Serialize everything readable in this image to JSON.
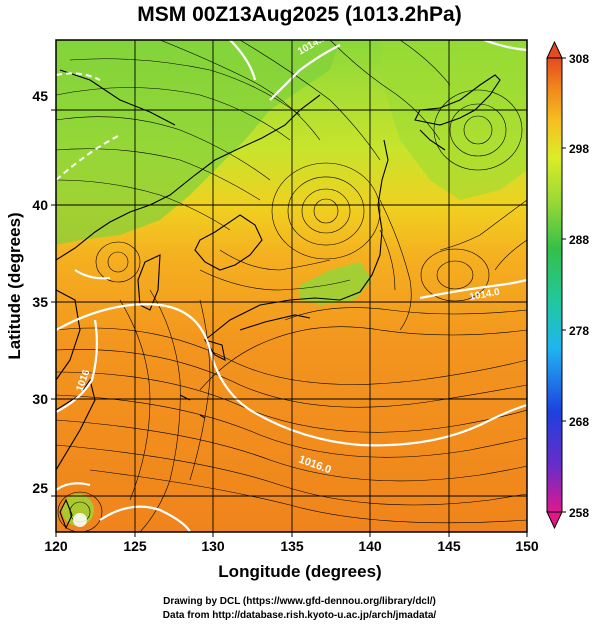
{
  "header": {
    "title": "MSM 00Z13Aug2025 (1013.2hPa)"
  },
  "axes": {
    "xlabel": "Longitude (degrees)",
    "ylabel": "Latitude  (degrees)",
    "x_ticks": [
      "120",
      "125",
      "130",
      "135",
      "140",
      "145",
      "150"
    ],
    "y_ticks": [
      "25",
      "30",
      "35",
      "40",
      "45"
    ],
    "x_range": [
      120,
      150
    ],
    "y_range": [
      22.4,
      47.6
    ]
  },
  "colorbar": {
    "ticks": [
      "308",
      "298",
      "288",
      "278",
      "268",
      "258"
    ],
    "range": [
      258,
      308
    ],
    "colors": [
      "#e0188c",
      "#6a2cc8",
      "#1e40e0",
      "#20b4f0",
      "#20c8a0",
      "#34c048",
      "#96d836",
      "#dcec28",
      "#f5c020",
      "#f08a1c",
      "#e64a20"
    ]
  },
  "contours": {
    "labels": [
      "1016.0",
      "1014.0",
      "1014.0",
      "1016"
    ],
    "color": "#ffffff"
  },
  "credits": {
    "line1": "Drawing by DCL (https://www.gfd-dennou.org/library/dcl/)",
    "line2": "Data from http://database.rish.kyoto-u.ac.jp/arch/jmadata/"
  }
}
